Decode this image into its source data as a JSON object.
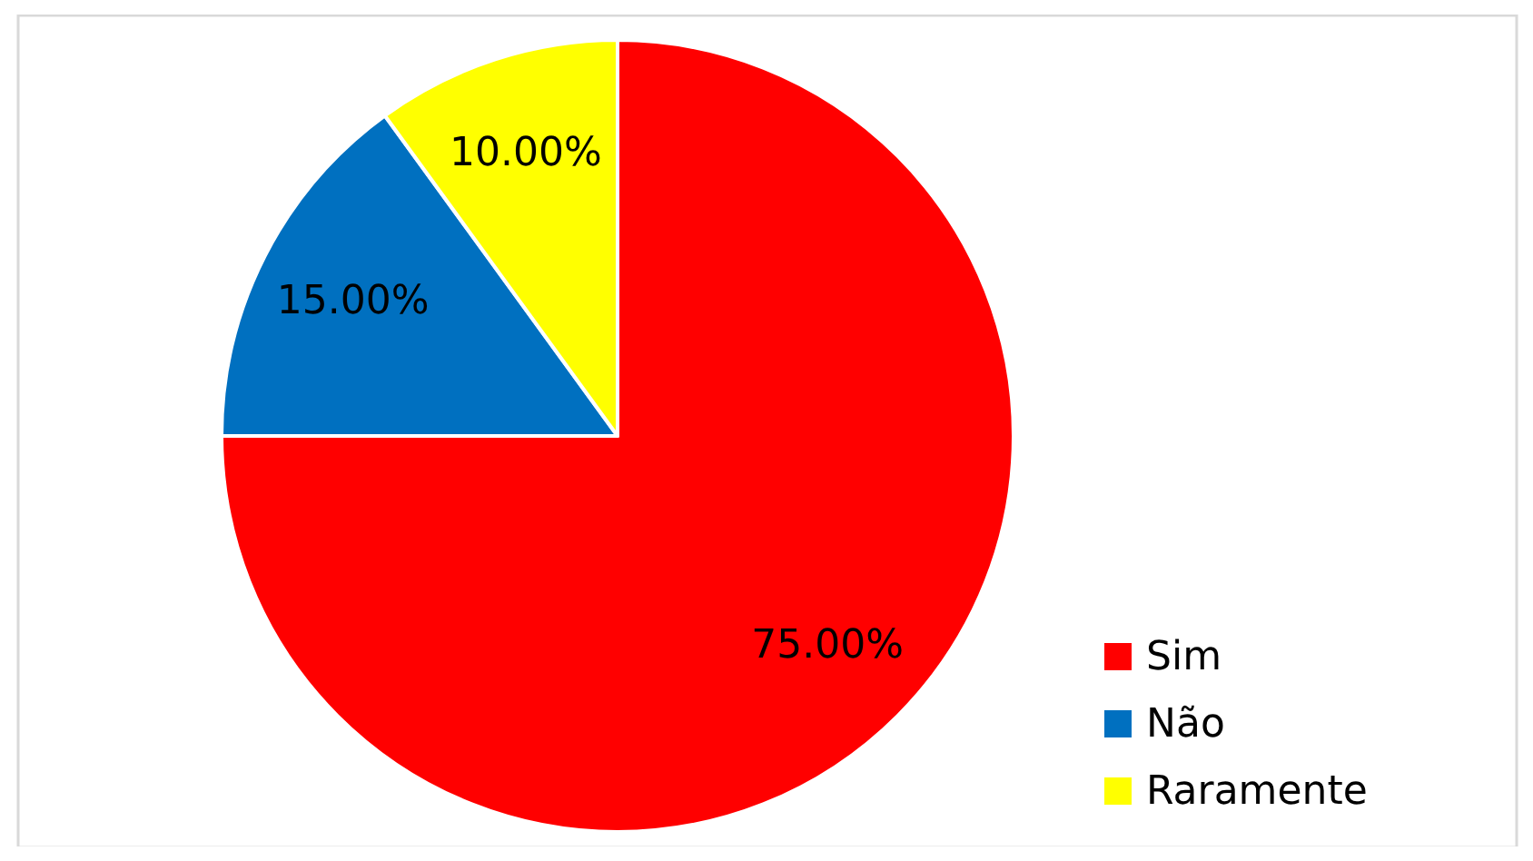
{
  "chart_data": {
    "type": "pie",
    "categories": [
      "Sim",
      "Não",
      "Raramente"
    ],
    "values": [
      75,
      15,
      10
    ],
    "colors": [
      "#ff0000",
      "#0070c0",
      "#ffff00"
    ],
    "value_labels": [
      "75.00%",
      "15.00%",
      "10.00%"
    ],
    "legend": "bottom right"
  }
}
